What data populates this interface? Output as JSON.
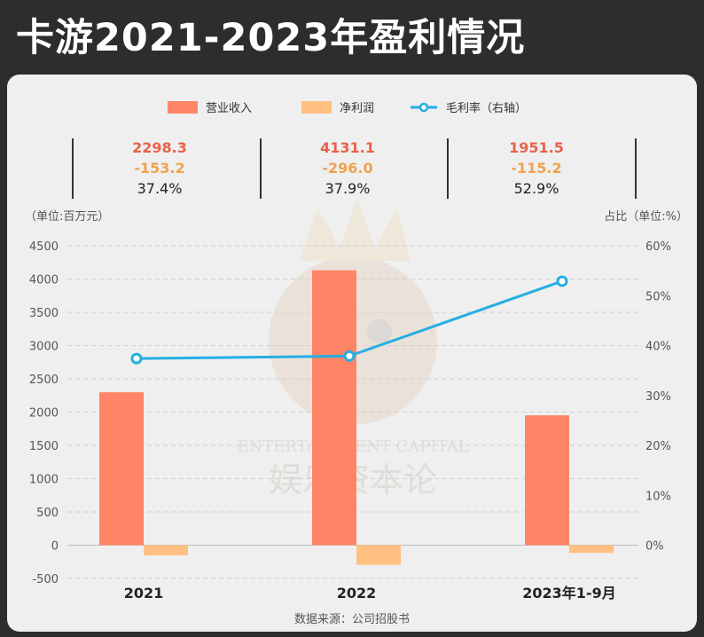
{
  "title": "卡游2021-2023年盈利情况",
  "legend": {
    "revenue": "营业收入",
    "net_profit": "净利润",
    "margin": "毛利率（右轴）"
  },
  "summary": [
    {
      "revenue": "2298.3",
      "net_profit": "-153.2",
      "margin": "37.4%"
    },
    {
      "revenue": "4131.1",
      "net_profit": "-296.0",
      "margin": "37.9%"
    },
    {
      "revenue": "1951.5",
      "net_profit": "-115.2",
      "margin": "52.9%"
    }
  ],
  "left_axis_unit": "（单位:百万元）",
  "right_axis_unit": "占比（单位:%）",
  "source": "数据来源：公司招股书",
  "colors": {
    "revenue": "#ff8566",
    "net_profit": "#ffc082",
    "margin": "#26aee3",
    "revenue_text": "#e8624a",
    "net_profit_text": "#f0a24e"
  },
  "chart_data": {
    "type": "bar",
    "categories": [
      "2021",
      "2022",
      "2023年1-9月"
    ],
    "series": [
      {
        "name": "营业收入",
        "type": "bar",
        "axis": "left",
        "values": [
          2298.3,
          4131.1,
          1951.5
        ]
      },
      {
        "name": "净利润",
        "type": "bar",
        "axis": "left",
        "values": [
          -153.2,
          -296.0,
          -115.2
        ]
      },
      {
        "name": "毛利率（右轴）",
        "type": "line",
        "axis": "right",
        "values": [
          37.4,
          37.9,
          52.9
        ]
      }
    ],
    "ylim": [
      -500,
      4500
    ],
    "yticks": [
      "-500",
      "0",
      "500",
      "1000",
      "1500",
      "2000",
      "2500",
      "3000",
      "3500",
      "4000",
      "4500"
    ],
    "y2lim": [
      0,
      60
    ],
    "y2ticks": [
      "0%",
      "10%",
      "20%",
      "30%",
      "40%",
      "50%",
      "60%"
    ],
    "grid": true,
    "legend_position": "top-center"
  }
}
